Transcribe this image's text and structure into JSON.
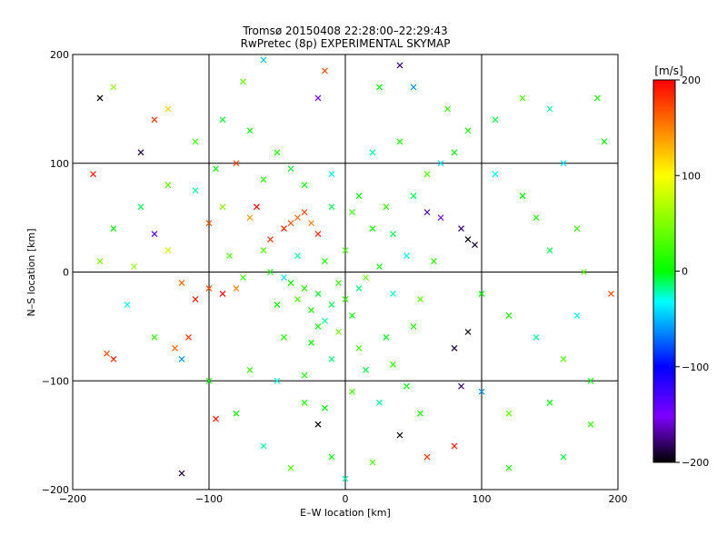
{
  "chart_data": {
    "type": "scatter",
    "title": "Tromsø 20150408 22:28:00–22:29:43",
    "subtitle": "RwPretec (8p) EXPERIMENTAL SKYMAP",
    "xlabel": "E–W location [km]",
    "ylabel": "N–S location [km]",
    "xlim": [
      -200,
      200
    ],
    "ylim": [
      -200,
      200
    ],
    "xticks": [
      "−200",
      "−100",
      "0",
      "100",
      "200"
    ],
    "yticks": [
      "−200",
      "−100",
      "0",
      "100",
      "200"
    ],
    "grid": true,
    "marker": "x",
    "colorbar": {
      "label": "[m/s]",
      "range": [
        -200,
        200
      ],
      "ticks": [
        "200",
        "100",
        "0",
        "−100",
        "−200"
      ],
      "colors": [
        "#000000",
        "#7f00ff",
        "#0000ff",
        "#00ffff",
        "#00ff00",
        "#ffff00",
        "#ff0000"
      ]
    },
    "points": [
      [
        -40,
        -10,
        0
      ],
      [
        -30,
        -15,
        10
      ],
      [
        -20,
        -20,
        -5
      ],
      [
        -25,
        -35,
        5
      ],
      [
        -10,
        -30,
        -10
      ],
      [
        0,
        -25,
        15
      ],
      [
        -15,
        -45,
        -20
      ],
      [
        5,
        -40,
        0
      ],
      [
        -35,
        -25,
        30
      ],
      [
        -45,
        -5,
        -40
      ],
      [
        -5,
        -10,
        20
      ],
      [
        10,
        -15,
        -15
      ],
      [
        -50,
        -30,
        5
      ],
      [
        -20,
        -50,
        0
      ],
      [
        15,
        -5,
        40
      ],
      [
        -60,
        20,
        35
      ],
      [
        -55,
        30,
        180
      ],
      [
        -45,
        40,
        190
      ],
      [
        -40,
        45,
        170
      ],
      [
        -35,
        50,
        160
      ],
      [
        -30,
        55,
        175
      ],
      [
        -25,
        45,
        150
      ],
      [
        -20,
        35,
        185
      ],
      [
        -65,
        60,
        200
      ],
      [
        -70,
        50,
        140
      ],
      [
        -30,
        80,
        10
      ],
      [
        -10,
        90,
        -30
      ],
      [
        10,
        70,
        0
      ],
      [
        30,
        60,
        20
      ],
      [
        50,
        70,
        -10
      ],
      [
        60,
        90,
        30
      ],
      [
        70,
        100,
        -40
      ],
      [
        80,
        110,
        0
      ],
      [
        40,
        120,
        10
      ],
      [
        20,
        110,
        -20
      ],
      [
        -50,
        110,
        15
      ],
      [
        -70,
        130,
        5
      ],
      [
        -90,
        140,
        -5
      ],
      [
        -110,
        120,
        25
      ],
      [
        -130,
        80,
        40
      ],
      [
        -150,
        60,
        -10
      ],
      [
        -170,
        40,
        0
      ],
      [
        -180,
        10,
        50
      ],
      [
        -160,
        -30,
        -30
      ],
      [
        -140,
        -60,
        20
      ],
      [
        -120,
        -80,
        -60
      ],
      [
        -100,
        -100,
        10
      ],
      [
        -80,
        -130,
        0
      ],
      [
        -60,
        -160,
        -20
      ],
      [
        -40,
        -180,
        30
      ],
      [
        100,
        -20,
        0
      ],
      [
        120,
        -40,
        10
      ],
      [
        140,
        -60,
        -20
      ],
      [
        160,
        -80,
        30
      ],
      [
        180,
        -100,
        0
      ],
      [
        150,
        20,
        -10
      ],
      [
        170,
        40,
        20
      ],
      [
        130,
        70,
        0
      ],
      [
        110,
        90,
        -30
      ],
      [
        90,
        130,
        10
      ],
      [
        95,
        25,
        -190
      ],
      [
        90,
        30,
        -200
      ],
      [
        85,
        40,
        -180
      ],
      [
        70,
        50,
        -160
      ],
      [
        60,
        55,
        -170
      ],
      [
        -100,
        -15,
        170
      ],
      [
        -110,
        -25,
        190
      ],
      [
        -120,
        -10,
        160
      ],
      [
        -90,
        -20,
        200
      ],
      [
        -80,
        -15,
        150
      ],
      [
        -115,
        -60,
        180
      ],
      [
        -125,
        -70,
        160
      ],
      [
        -170,
        -80,
        190
      ],
      [
        -175,
        -75,
        170
      ],
      [
        80,
        -70,
        -190
      ],
      [
        90,
        -55,
        -200
      ],
      [
        85,
        -105,
        -180
      ],
      [
        100,
        -110,
        -60
      ],
      [
        120,
        -130,
        40
      ],
      [
        -20,
        -140,
        -200
      ],
      [
        -120,
        -185,
        -190
      ],
      [
        -95,
        -135,
        190
      ],
      [
        -180,
        160,
        -200
      ],
      [
        -170,
        170,
        60
      ],
      [
        -20,
        160,
        -150
      ],
      [
        40,
        190,
        -180
      ],
      [
        50,
        170,
        -60
      ],
      [
        -130,
        150,
        120
      ],
      [
        -140,
        140,
        180
      ],
      [
        -150,
        110,
        -190
      ],
      [
        -185,
        90,
        190
      ],
      [
        -75,
        175,
        40
      ],
      [
        -60,
        195,
        -50
      ],
      [
        -15,
        185,
        170
      ],
      [
        25,
        170,
        0
      ],
      [
        75,
        150,
        20
      ],
      [
        110,
        140,
        -10
      ],
      [
        130,
        160,
        30
      ],
      [
        150,
        150,
        -20
      ],
      [
        185,
        160,
        10
      ],
      [
        190,
        120,
        0
      ],
      [
        160,
        100,
        -40
      ],
      [
        140,
        50,
        10
      ],
      [
        175,
        0,
        30
      ],
      [
        195,
        -20,
        170
      ],
      [
        170,
        -40,
        -30
      ],
      [
        150,
        -120,
        0
      ],
      [
        180,
        -140,
        20
      ],
      [
        160,
        -170,
        -10
      ],
      [
        120,
        -180,
        10
      ],
      [
        80,
        -160,
        190
      ],
      [
        60,
        -170,
        180
      ],
      [
        40,
        -150,
        -200
      ],
      [
        20,
        -175,
        30
      ],
      [
        0,
        -190,
        -20
      ],
      [
        -10,
        -170,
        0
      ],
      [
        -30,
        -120,
        10
      ],
      [
        -50,
        -100,
        -30
      ],
      [
        -70,
        -90,
        20
      ],
      [
        -30,
        -95,
        5
      ],
      [
        -10,
        -80,
        -15
      ],
      [
        10,
        -70,
        25
      ],
      [
        30,
        -60,
        -5
      ],
      [
        50,
        -50,
        10
      ],
      [
        55,
        -25,
        35
      ],
      [
        35,
        -20,
        -25
      ],
      [
        25,
        5,
        0
      ],
      [
        45,
        15,
        -30
      ],
      [
        65,
        10,
        15
      ],
      [
        35,
        35,
        -10
      ],
      [
        20,
        40,
        5
      ],
      [
        5,
        55,
        20
      ],
      [
        -10,
        60,
        -10
      ],
      [
        0,
        20,
        30
      ],
      [
        -15,
        10,
        10
      ],
      [
        -35,
        15,
        -20
      ],
      [
        -55,
        0,
        5
      ],
      [
        -75,
        -5,
        25
      ],
      [
        -85,
        15,
        30
      ],
      [
        -5,
        -55,
        45
      ],
      [
        -25,
        -65,
        0
      ],
      [
        -45,
        -60,
        15
      ],
      [
        15,
        -90,
        -10
      ],
      [
        35,
        -85,
        20
      ],
      [
        45,
        -105,
        0
      ],
      [
        55,
        -130,
        10
      ],
      [
        25,
        -120,
        -20
      ],
      [
        5,
        -110,
        30
      ],
      [
        -15,
        -125,
        0
      ],
      [
        -90,
        60,
        55
      ],
      [
        -100,
        45,
        170
      ],
      [
        -140,
        35,
        -130
      ],
      [
        -155,
        5,
        60
      ],
      [
        -130,
        20,
        80
      ],
      [
        -110,
        75,
        -20
      ],
      [
        -95,
        95,
        0
      ],
      [
        -80,
        100,
        175
      ],
      [
        -60,
        85,
        15
      ],
      [
        -40,
        95,
        -5
      ]
    ]
  }
}
